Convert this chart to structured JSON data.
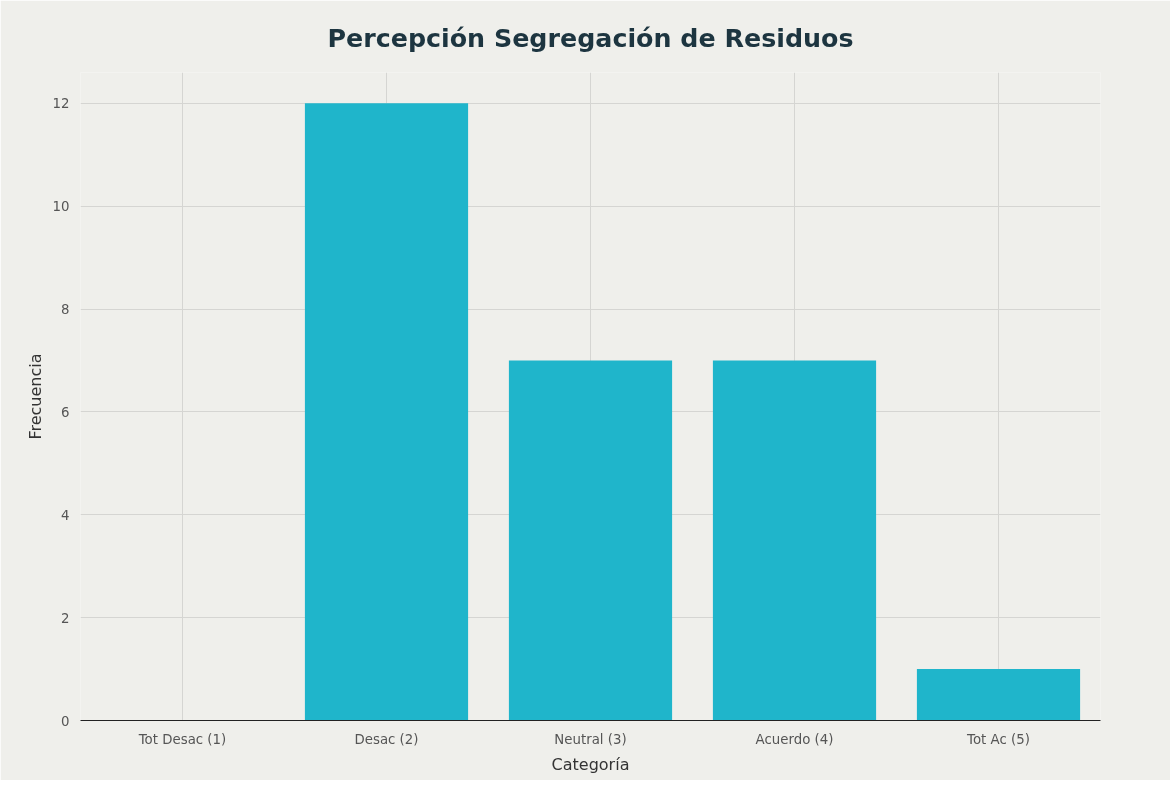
{
  "chart_data": {
    "type": "bar",
    "title": "Percepción Segregación de Residuos",
    "xlabel": "Categoría",
    "ylabel": "Frecuencia",
    "categories": [
      "Tot Desac (1)",
      "Desac (2)",
      "Neutral (3)",
      "Acuerdo (4)",
      "Tot Ac (5)"
    ],
    "values": [
      0,
      12,
      7,
      7,
      1
    ],
    "color": "#1fb5cb",
    "ylim": [
      0,
      12.6
    ],
    "yticks": [
      0,
      2,
      4,
      6,
      8,
      10,
      12
    ],
    "grid": true
  }
}
